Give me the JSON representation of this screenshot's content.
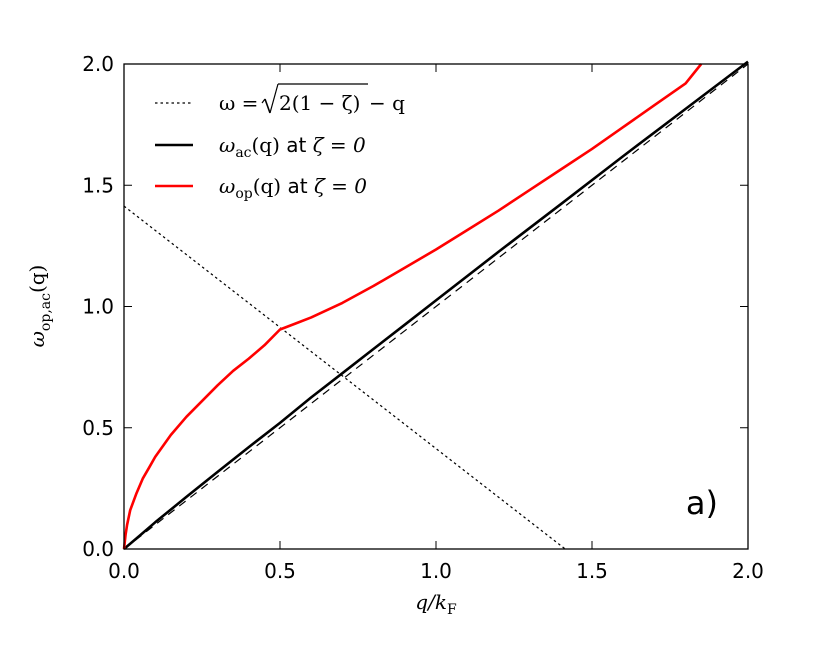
{
  "chart_data": {
    "type": "line",
    "xlabel": {
      "main": "q/k",
      "sub": "F"
    },
    "ylabel": {
      "main": "ω",
      "sub": "op,ac",
      "tail": "(q)"
    },
    "xlim": [
      0,
      2
    ],
    "ylim": [
      0,
      2
    ],
    "x_ticks": [
      "0.0",
      "0.5",
      "1.0",
      "1.5",
      "2.0"
    ],
    "y_ticks": [
      "0.0",
      "0.5",
      "1.0",
      "1.5",
      "2.0"
    ],
    "grid": false,
    "legend_position": "upper-left",
    "panel_label": "a)",
    "series": [
      {
        "key": "dotted",
        "legend": {
          "lhs": "ω = ",
          "radicand": "2(1 − ζ)",
          "rhs": " − q"
        },
        "color": "#000000",
        "style": "dotted",
        "x": [
          0.0,
          1.4142
        ],
        "y": [
          1.4142,
          0.0
        ]
      },
      {
        "key": "acoustic",
        "legend": {
          "sym": "ω",
          "sub": "ac",
          "args": "(q)",
          "mid": " at ",
          "cond": "ζ = 0"
        },
        "color": "#000000",
        "style": "solid",
        "x": [
          0.0,
          0.05,
          0.1,
          0.2,
          0.3,
          0.4,
          0.5,
          0.6,
          0.7,
          0.8,
          0.9,
          1.0,
          1.2,
          1.4,
          1.6,
          1.8,
          2.0
        ],
        "y": [
          0.0,
          0.055,
          0.11,
          0.215,
          0.318,
          0.42,
          0.52,
          0.625,
          0.725,
          0.825,
          0.925,
          1.025,
          1.225,
          1.422,
          1.62,
          1.815,
          2.01
        ]
      },
      {
        "key": "optical",
        "legend": {
          "sym": "ω",
          "sub": "op",
          "args": "(q)",
          "mid": " at ",
          "cond": "ζ = 0"
        },
        "color": "#ff0000",
        "style": "solid",
        "x": [
          0.0,
          0.005,
          0.01,
          0.02,
          0.04,
          0.06,
          0.08,
          0.1,
          0.15,
          0.2,
          0.25,
          0.3,
          0.35,
          0.4,
          0.45,
          0.5,
          0.55,
          0.6,
          0.7,
          0.8,
          0.9,
          1.0,
          1.1,
          1.2,
          1.3,
          1.4,
          1.5,
          1.6,
          1.7,
          1.8,
          1.85
        ],
        "y": [
          0.0,
          0.06,
          0.1,
          0.16,
          0.23,
          0.29,
          0.335,
          0.38,
          0.47,
          0.545,
          0.61,
          0.675,
          0.735,
          0.785,
          0.84,
          0.905,
          0.93,
          0.955,
          1.015,
          1.085,
          1.16,
          1.235,
          1.315,
          1.395,
          1.48,
          1.565,
          1.65,
          1.74,
          1.83,
          1.92,
          2.0
        ]
      },
      {
        "key": "reference",
        "color": "#000000",
        "style": "dashed",
        "x": [
          0.0,
          2.0
        ],
        "y": [
          0.0,
          2.0
        ]
      }
    ]
  }
}
